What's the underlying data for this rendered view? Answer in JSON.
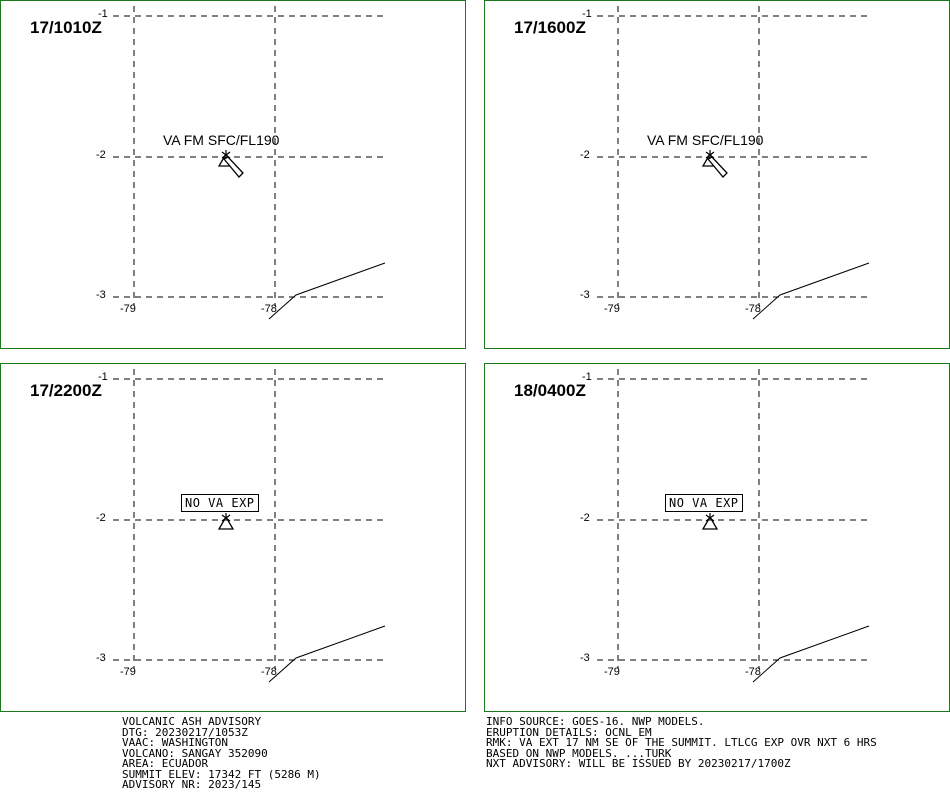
{
  "panels": [
    {
      "time": "17/1010Z",
      "annotation": "VA FM SFC/FL190",
      "annotation_style": "plain",
      "ash_plume": true
    },
    {
      "time": "17/1600Z",
      "annotation": "VA FM SFC/FL190",
      "annotation_style": "plain",
      "ash_plume": true
    },
    {
      "time": "17/2200Z",
      "annotation": "NO VA EXP",
      "annotation_style": "boxed",
      "ash_plume": false
    },
    {
      "time": "18/0400Z",
      "annotation": "NO VA EXP",
      "annotation_style": "boxed",
      "ash_plume": false
    }
  ],
  "axes": {
    "lat_ticks": [
      "-1",
      "-2",
      "-3"
    ],
    "lon_ticks": [
      "-79",
      "-78"
    ]
  },
  "advisory_left": [
    "VOLCANIC ASH ADVISORY",
    "DTG: 20230217/1053Z",
    "VAAC: WASHINGTON",
    "VOLCANO: SANGAY 352090",
    "AREA: ECUADOR",
    "SUMMIT ELEV: 17342 FT (5286 M)",
    "ADVISORY NR: 2023/145"
  ],
  "advisory_right": [
    "INFO SOURCE: GOES-16. NWP MODELS.",
    "ERUPTION DETAILS: OCNL EM",
    "RMK: VA EXT 17 NM SE OF THE SUMMIT. LTLCG EXP OVR NXT 6 HRS",
    "BASED ON NWP MODELS. ...TURK",
    "NXT ADVISORY: WILL BE ISSUED BY 20230217/1700Z"
  ],
  "colors": {
    "panel_border": "#1a7a1a",
    "lines": "#000000"
  }
}
